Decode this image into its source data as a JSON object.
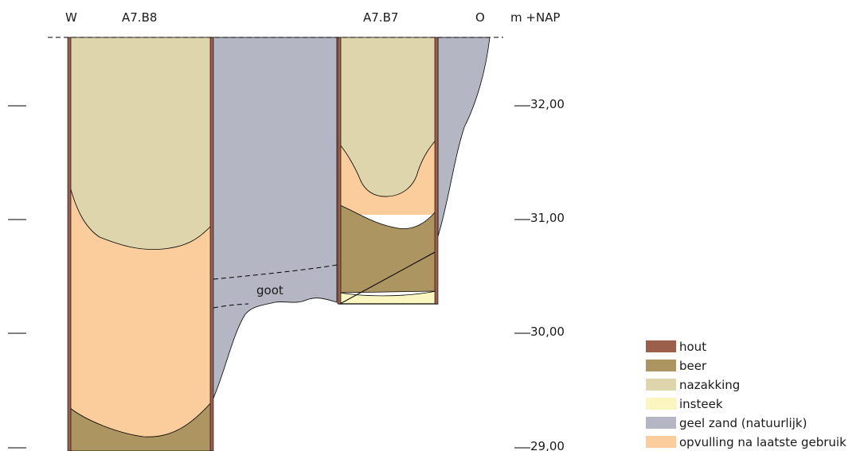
{
  "header": {
    "west": "W",
    "pit_b8": "A7.B8",
    "pit_b7": "A7.B7",
    "east": "O",
    "unit": "m +NAP"
  },
  "elevations": [
    "32,00",
    "31,00",
    "30,00",
    "29,00"
  ],
  "annotations": {
    "goot": "goot"
  },
  "legend": [
    {
      "label": "hout",
      "color": "#9b5f4c"
    },
    {
      "label": "beer",
      "color": "#ad9562"
    },
    {
      "label": "nazakking",
      "color": "#dfd5ad"
    },
    {
      "label": "insteek",
      "color": "#fbf6c0"
    },
    {
      "label": "geel zand (natuurlijk)",
      "color": "#b5b6c4"
    },
    {
      "label": "opvulling na laatste gebruik",
      "color": "#fbcd9c"
    }
  ]
}
